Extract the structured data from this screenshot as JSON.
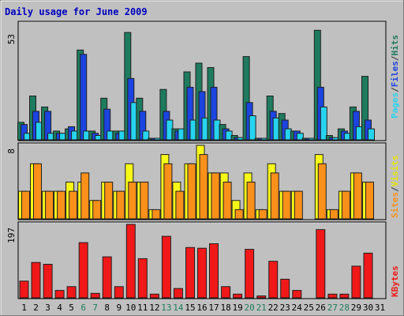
{
  "chart_data": {
    "type": "bar",
    "title": "Daily usage for June 2009",
    "categories": [
      "1",
      "2",
      "3",
      "4",
      "5",
      "6",
      "7",
      "8",
      "9",
      "10",
      "11",
      "12",
      "13",
      "14",
      "15",
      "16",
      "17",
      "18",
      "19",
      "20",
      "21",
      "22",
      "23",
      "24",
      "25",
      "26",
      "27",
      "28",
      "29",
      "30",
      "31"
    ],
    "weekend_days": [
      "6",
      "7",
      "13",
      "14",
      "20",
      "21",
      "27",
      "28"
    ],
    "panels": [
      {
        "ymax_label": "53",
        "ymax": 53,
        "series": [
          {
            "name": "Hits",
            "color": "#1e7b5e",
            "values": [
              8,
              20,
              15,
              4,
              5,
              41,
              4,
              19,
              4,
              49,
              19,
              0.5,
              23,
              5,
              31,
              35,
              33,
              7,
              2,
              38,
              0.5,
              20,
              12,
              4,
              0.5,
              50,
              2,
              5,
              15,
              29,
              0
            ]
          },
          {
            "name": "Files",
            "color": "#1c44e0",
            "values": [
              7,
              13,
              13,
              3,
              6,
              39,
              3,
              14,
              3,
              28,
              13,
              0.5,
              13,
              4,
              24,
              22,
              24,
              5,
              1,
              17,
              0.5,
              13,
              9,
              4,
              0.5,
              24,
              1,
              4,
              13,
              9,
              0
            ]
          },
          {
            "name": "Pages",
            "color": "#26d4f0",
            "values": [
              3,
              8,
              3,
              3,
              4,
              4,
              2,
              4,
              4,
              17,
              4,
              0.5,
              9,
              5,
              9,
              10,
              9,
              4,
              1,
              11,
              0.5,
              10,
              5,
              3,
              0.5,
              15,
              1,
              3,
              6,
              5,
              0
            ]
          }
        ]
      },
      {
        "ymax_label": "8",
        "ymax": 8,
        "series": [
          {
            "name": "Visits",
            "color": "#f8f818",
            "values": [
              3,
              6,
              3,
              3,
              4,
              4,
              2,
              4,
              3,
              6,
              4,
              1,
              7,
              4,
              6,
              8,
              5,
              5,
              2,
              5,
              1,
              6,
              3,
              3,
              0,
              7,
              1,
              3,
              5,
              4,
              0
            ]
          },
          {
            "name": "Sites",
            "color": "#f8901a",
            "values": [
              3,
              6,
              3,
              3,
              3,
              5,
              2,
              4,
              3,
              4,
              4,
              1,
              6,
              3,
              6,
              7,
              5,
              4,
              1,
              4,
              1,
              5,
              3,
              3,
              0,
              6,
              1,
              3,
              5,
              4,
              0
            ]
          }
        ]
      },
      {
        "ymax_label": "197",
        "ymax": 197,
        "series": [
          {
            "name": "KBytes",
            "color": "#f01818",
            "values": [
              45,
              95,
              90,
              20,
              30,
              148,
              12,
              110,
              30,
              197,
              105,
              10,
              165,
              25,
              135,
              133,
              145,
              30,
              10,
              130,
              5,
              98,
              50,
              20,
              0,
              183,
              10,
              10,
              85,
              120,
              0
            ]
          }
        ]
      }
    ],
    "legend": {
      "panel1": [
        "Pages",
        "/",
        "Files",
        "/",
        "Hits"
      ],
      "panel2": [
        "Sites",
        "/",
        "Visits"
      ],
      "panel3": [
        "KBytes"
      ]
    },
    "colors": {
      "title": "#0000c0",
      "weekend": "#1e7b5e",
      "weekday": "#000000",
      "background": "#c0c0c0"
    }
  }
}
